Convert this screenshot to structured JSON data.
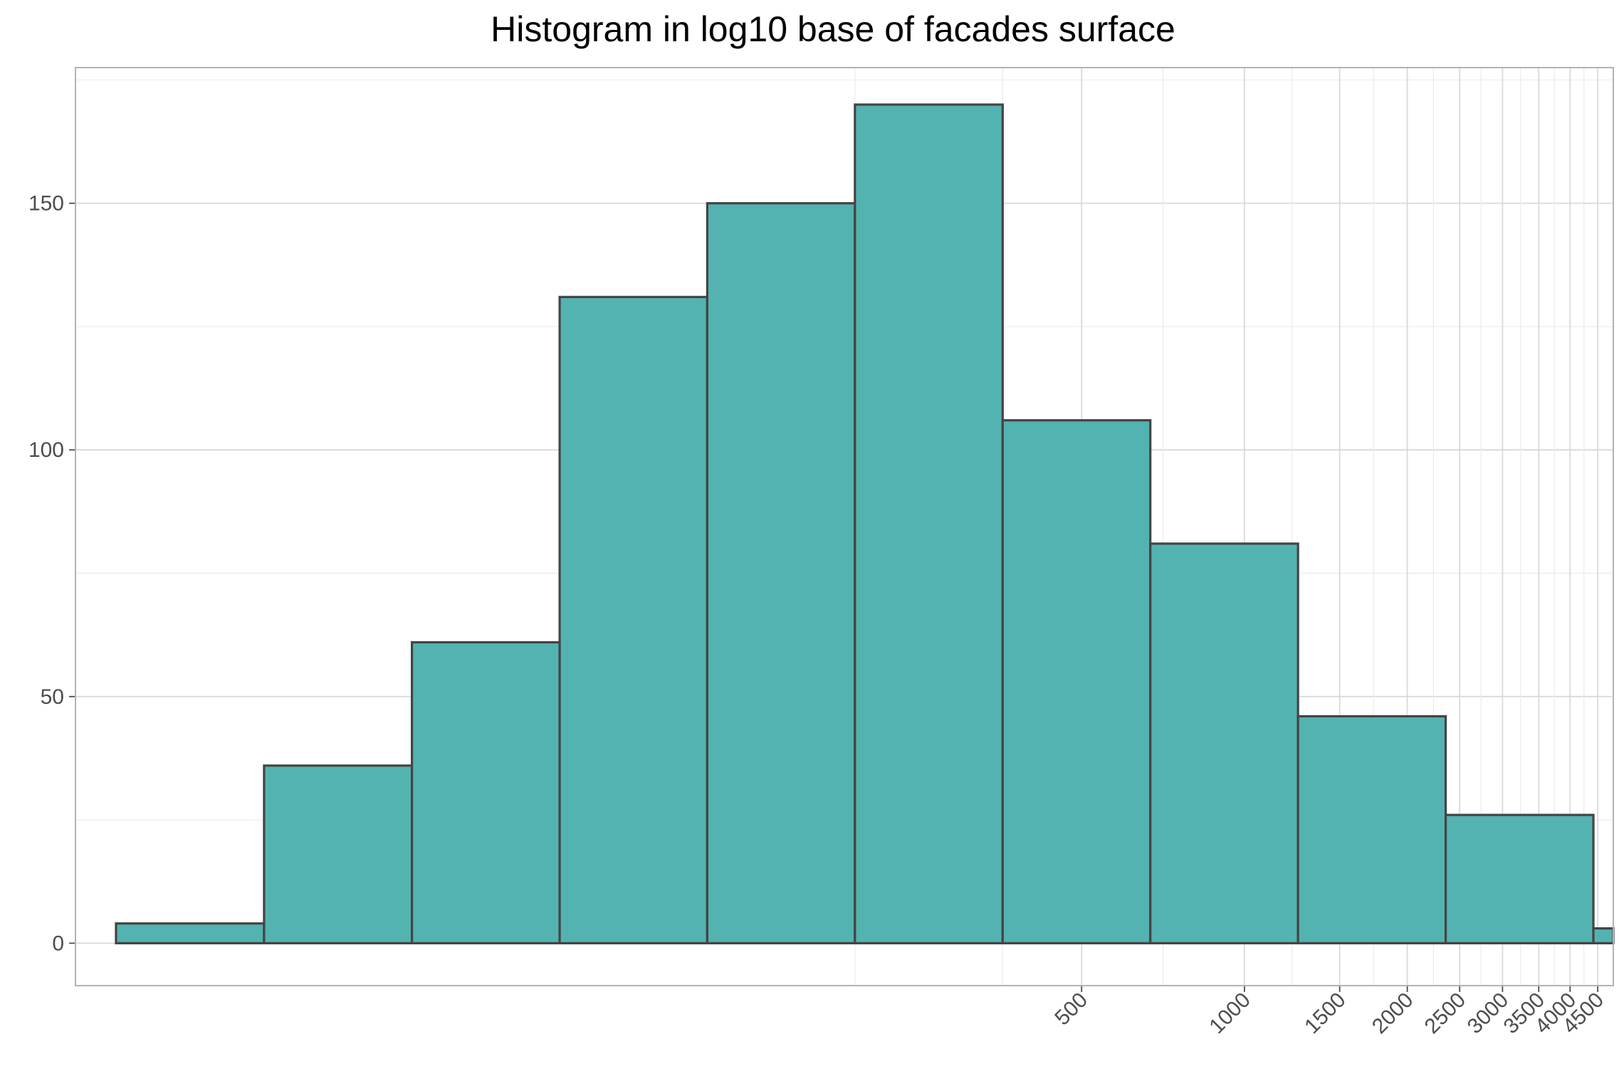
{
  "chart_data": {
    "type": "bar",
    "title": "Histogram in log10 base of facades surface",
    "xlabel": "",
    "ylabel": "",
    "x_scale": "log10",
    "x_axis_range": [
      6.9,
      4808
    ],
    "ylim": [
      -8.6,
      177.5
    ],
    "grid": true,
    "legend": "none",
    "bins": [
      {
        "x_start": 8.2,
        "x_end": 15.4,
        "count": 4
      },
      {
        "x_start": 15.4,
        "x_end": 28.9,
        "count": 36
      },
      {
        "x_start": 28.9,
        "x_end": 54.2,
        "count": 61
      },
      {
        "x_start": 54.2,
        "x_end": 101.6,
        "count": 131
      },
      {
        "x_start": 101.6,
        "x_end": 190.5,
        "count": 150
      },
      {
        "x_start": 190.5,
        "x_end": 357.3,
        "count": 170
      },
      {
        "x_start": 357.3,
        "x_end": 669.9,
        "count": 106
      },
      {
        "x_start": 669.9,
        "x_end": 1256.3,
        "count": 81
      },
      {
        "x_start": 1256.3,
        "x_end": 2355.6,
        "count": 46
      },
      {
        "x_start": 2355.6,
        "x_end": 4417.1,
        "count": 26
      },
      {
        "x_start": 4417.1,
        "x_end": 8282.5,
        "count": 3
      }
    ],
    "x_ticks": [
      500,
      1000,
      1500,
      2000,
      2500,
      3000,
      3500,
      4000,
      4500
    ],
    "x_tick_labels": [
      "500",
      "1000",
      "1500",
      "2000",
      "2500",
      "3000",
      "3500",
      "4000",
      "4500"
    ],
    "x_minor_gridlines": [
      190.5,
      357.3
    ],
    "y_ticks": [
      0,
      50,
      100,
      150
    ],
    "y_tick_labels": [
      "0",
      "50",
      "100",
      "150"
    ],
    "y_minor_ticks": [
      25,
      75,
      125,
      175
    ]
  },
  "colors": {
    "bar_fill": "#53b3b1",
    "bar_stroke": "#444444",
    "grid_major": "#d9d9d9",
    "grid_minor": "#ebebeb",
    "panel_border": "#b3b3b3",
    "tick_label": "#4d4d4d",
    "title": "#000000"
  }
}
